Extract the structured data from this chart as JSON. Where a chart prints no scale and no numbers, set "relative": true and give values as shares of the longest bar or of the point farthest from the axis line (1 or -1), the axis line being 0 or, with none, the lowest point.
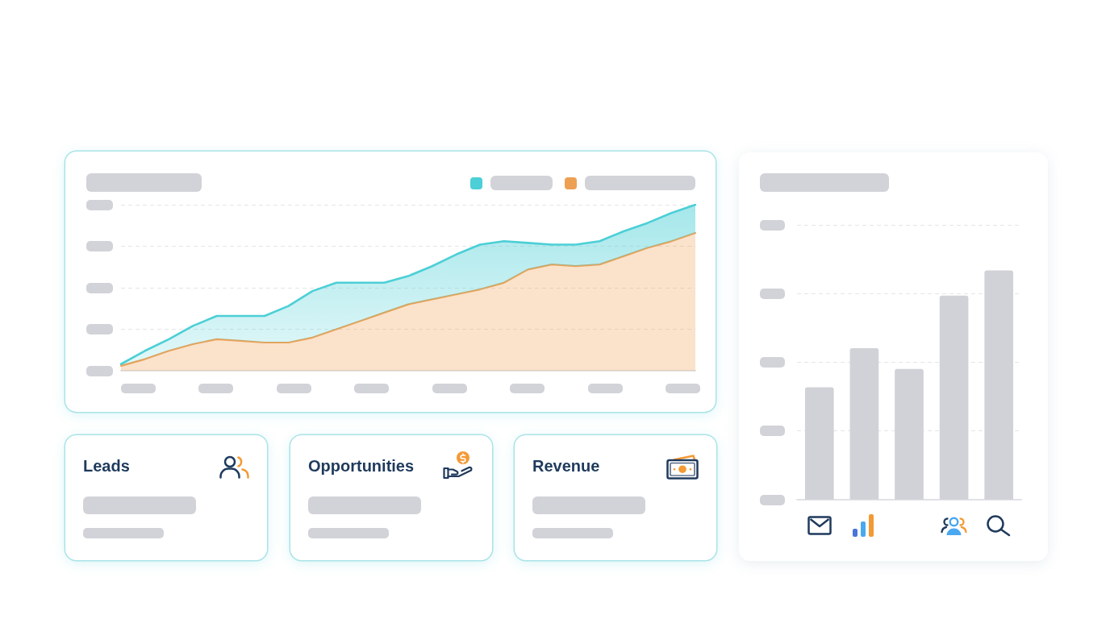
{
  "chart_data": [
    {
      "type": "area",
      "relative": true,
      "categories": [
        null,
        null,
        null,
        null,
        null,
        null,
        null,
        null,
        null,
        null,
        null,
        null,
        null,
        null,
        null,
        null,
        null,
        null,
        null,
        null,
        null,
        null,
        null,
        null,
        null
      ],
      "series": [
        {
          "color": "#4ccfd6",
          "values": [
            0.04,
            0.12,
            0.19,
            0.27,
            0.33,
            0.33,
            0.33,
            0.39,
            0.48,
            0.53,
            0.53,
            0.53,
            0.57,
            0.63,
            0.7,
            0.76,
            0.78,
            0.77,
            0.76,
            0.76,
            0.78,
            0.84,
            0.89,
            0.95,
            1
          ]
        },
        {
          "color": "#eea052",
          "values": [
            0.03,
            0.07,
            0.12,
            0.16,
            0.19,
            0.18,
            0.17,
            0.17,
            0.2,
            0.25,
            0.3,
            0.35,
            0.4,
            0.43,
            0.46,
            0.49,
            0.53,
            0.61,
            0.64,
            0.63,
            0.64,
            0.69,
            0.74,
            0.78,
            0.83
          ]
        }
      ],
      "grid": "y"
    },
    {
      "type": "bar",
      "relative": true,
      "categories": [
        null,
        null,
        null,
        null,
        null
      ],
      "values": [
        0.49,
        0.66,
        0.57,
        0.89,
        1
      ],
      "color": "#d1d2d7",
      "grid": "y"
    },
    {
      "type": "other",
      "title": "Leads"
    },
    {
      "type": "other",
      "title": "Opportunities"
    },
    {
      "type": "other",
      "title": "Revenue"
    }
  ]
}
